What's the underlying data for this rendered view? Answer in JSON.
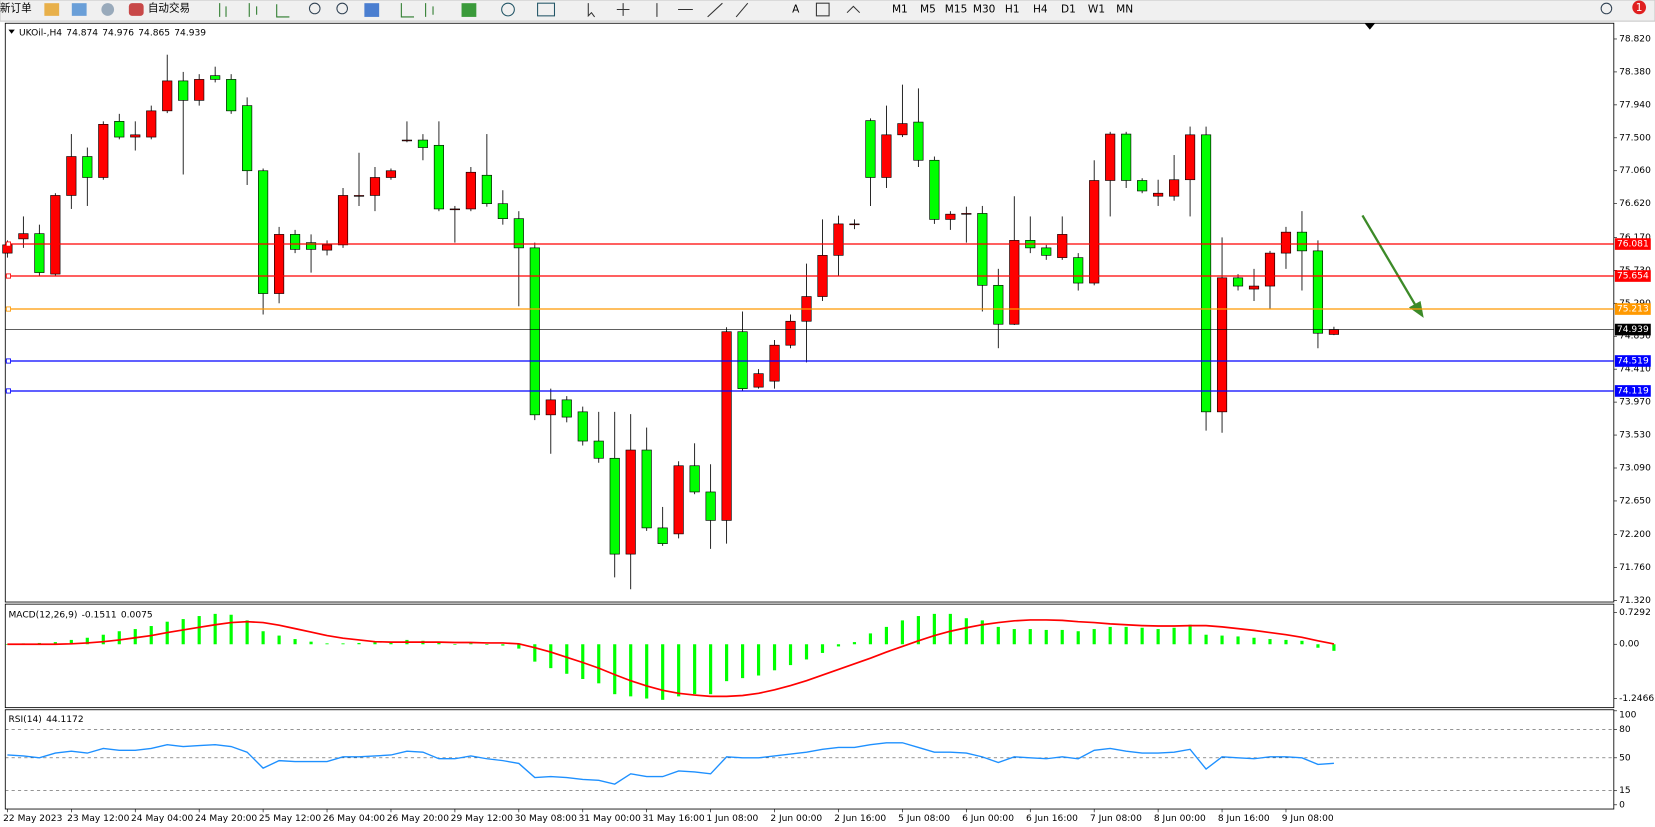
{
  "toolbar": {
    "new_order": "新订单",
    "autotrading": "自动交易",
    "timeframes": [
      "M1",
      "M5",
      "M15",
      "M30",
      "H1",
      "H4",
      "D1",
      "W1",
      "MN"
    ],
    "notification_count": 1
  },
  "chart_data": [
    {
      "type": "candlestick",
      "title": "UKOil-,H4",
      "categories": [
        "22 May 2023",
        null,
        null,
        null,
        "23 May 12:00",
        null,
        null,
        null,
        "24 May 04:00",
        null,
        null,
        null,
        "24 May 20:00",
        null,
        null,
        null,
        "25 May 12:00",
        null,
        null,
        null,
        "26 May 04:00",
        null,
        null,
        null,
        "26 May 20:00",
        null,
        null,
        null,
        "29 May 12:00",
        null,
        null,
        null,
        "30 May 08:00",
        null,
        null,
        null,
        "31 May 00:00",
        null,
        null,
        null,
        "31 May 16:00",
        null,
        null,
        null,
        "1 Jun 08:00",
        null,
        null,
        null,
        "2 Jun 00:00",
        null,
        null,
        null,
        "2 Jun 16:00",
        null,
        null,
        null,
        "5 Jun 08:00",
        null,
        null,
        null,
        "6 Jun 00:00",
        null,
        null,
        null,
        "6 Jun 16:00",
        null,
        null,
        null,
        "7 Jun 08:00",
        null,
        null,
        null,
        "8 Jun 00:00",
        null,
        null,
        null,
        "8 Jun 16:00",
        null,
        null,
        null,
        "9 Jun 08:00",
        null,
        null,
        null
      ],
      "open": [
        75.96,
        76.15,
        76.22,
        75.68,
        76.73,
        77.25,
        76.97,
        77.72,
        77.51,
        77.51,
        77.86,
        78.26,
        78.0,
        78.33,
        78.28,
        77.93,
        77.06,
        75.42,
        76.21,
        76.1,
        76.0,
        76.07,
        76.73,
        76.73,
        76.97,
        77.47,
        77.47,
        77.4,
        76.55,
        76.55,
        77.0,
        76.62,
        76.42,
        76.03,
        73.8,
        74.0,
        73.84,
        73.45,
        73.22,
        71.94,
        73.33,
        72.29,
        72.21,
        73.12,
        72.77,
        72.39,
        74.91,
        74.17,
        74.25,
        74.73,
        75.05,
        75.38,
        75.93,
        76.35,
        77.73,
        76.97,
        77.54,
        77.71,
        77.2,
        76.41,
        76.49,
        76.49,
        75.53,
        75.01,
        76.13,
        76.03,
        75.9,
        75.9,
        75.56,
        76.93,
        77.55,
        76.93,
        76.72,
        76.72,
        76.94,
        77.54,
        73.84,
        75.63,
        75.48,
        75.52,
        75.96,
        76.24,
        75.99,
        74.874
      ],
      "high": [
        76.13,
        76.45,
        76.34,
        76.76,
        77.55,
        77.37,
        77.72,
        77.82,
        77.72,
        77.93,
        78.61,
        78.38,
        78.35,
        78.45,
        78.35,
        78.04,
        77.09,
        76.31,
        76.27,
        76.21,
        76.13,
        76.83,
        77.3,
        77.11,
        77.09,
        77.72,
        77.55,
        77.72,
        76.59,
        77.11,
        77.55,
        76.8,
        76.52,
        76.1,
        74.15,
        74.05,
        73.91,
        73.84,
        73.84,
        73.81,
        73.63,
        72.57,
        73.18,
        73.42,
        73.14,
        74.97,
        75.18,
        74.41,
        74.8,
        75.14,
        75.82,
        76.41,
        76.46,
        76.41,
        77.76,
        77.93,
        78.21,
        78.16,
        77.25,
        76.52,
        76.58,
        76.59,
        75.75,
        76.72,
        76.45,
        76.07,
        76.45,
        75.96,
        77.2,
        77.58,
        77.58,
        76.96,
        76.94,
        77.27,
        77.65,
        77.65,
        76.17,
        75.68,
        75.75,
        75.99,
        76.31,
        76.52,
        76.13,
        74.976
      ],
      "low": [
        75.9,
        76.03,
        75.65,
        75.65,
        76.55,
        76.59,
        76.94,
        77.48,
        77.33,
        77.48,
        77.83,
        77.01,
        77.93,
        78.24,
        77.82,
        76.87,
        75.14,
        75.29,
        75.96,
        75.7,
        75.93,
        76.03,
        76.59,
        76.52,
        76.94,
        77.44,
        77.2,
        76.52,
        76.1,
        76.52,
        76.58,
        76.34,
        75.25,
        73.73,
        73.28,
        73.7,
        73.39,
        73.16,
        71.63,
        71.47,
        72.25,
        72.05,
        72.15,
        72.74,
        72.01,
        72.08,
        74.12,
        74.15,
        74.15,
        74.69,
        74.5,
        75.32,
        75.65,
        76.28,
        76.59,
        76.83,
        77.51,
        77.11,
        76.35,
        76.27,
        76.1,
        75.18,
        74.69,
        75.0,
        75.96,
        75.87,
        75.87,
        75.46,
        75.53,
        76.45,
        76.83,
        76.76,
        76.59,
        76.66,
        76.45,
        73.59,
        73.56,
        75.46,
        75.32,
        75.22,
        75.75,
        75.46,
        74.69,
        74.865
      ],
      "close": [
        76.07,
        76.22,
        75.7,
        76.73,
        77.25,
        76.97,
        77.68,
        77.51,
        77.54,
        77.86,
        78.26,
        78.0,
        78.28,
        78.28,
        77.86,
        77.06,
        75.42,
        76.21,
        76.01,
        76.01,
        76.07,
        76.73,
        76.73,
        76.97,
        77.06,
        77.47,
        77.37,
        76.55,
        76.55,
        77.04,
        76.62,
        76.42,
        76.03,
        73.8,
        74.0,
        73.77,
        73.45,
        73.22,
        71.94,
        73.33,
        72.29,
        72.08,
        73.12,
        72.77,
        72.39,
        74.91,
        74.15,
        74.35,
        74.73,
        75.05,
        75.38,
        75.93,
        76.35,
        76.35,
        76.97,
        77.54,
        77.69,
        77.2,
        76.41,
        76.48,
        76.49,
        75.53,
        75.01,
        76.13,
        76.03,
        75.93,
        76.21,
        75.56,
        76.93,
        77.55,
        76.93,
        76.79,
        76.76,
        76.94,
        77.54,
        73.84,
        75.63,
        75.52,
        75.52,
        75.96,
        76.24,
        75.99,
        74.89,
        74.939
      ],
      "up_color": "#ff0000",
      "down_color": "#00ff00",
      "ylim": [
        71.3,
        79.03
      ],
      "yticks": [
        {
          "value": 78.82,
          "label": "78.820"
        },
        {
          "value": 78.38,
          "label": "78.380"
        },
        {
          "value": 77.94,
          "label": "77.940"
        },
        {
          "value": 77.5,
          "label": "77.500"
        },
        {
          "value": 77.06,
          "label": "77.060"
        },
        {
          "value": 76.62,
          "label": "76.620"
        },
        {
          "value": 76.17,
          "label": "76.170"
        },
        {
          "value": 75.73,
          "label": "75.730"
        },
        {
          "value": 75.29,
          "label": "75.290"
        },
        {
          "value": 74.85,
          "label": "74.850"
        },
        {
          "value": 74.41,
          "label": "74.410"
        },
        {
          "value": 73.97,
          "label": "73.970"
        },
        {
          "value": 73.53,
          "label": "73.530"
        },
        {
          "value": 73.09,
          "label": "73.090"
        },
        {
          "value": 72.65,
          "label": "72.650"
        },
        {
          "value": 72.2,
          "label": "72.200"
        },
        {
          "value": 71.76,
          "label": "71.760"
        },
        {
          "value": 71.32,
          "label": "71.320"
        }
      ],
      "hlines": [
        {
          "value": 76.081,
          "color": "#ff0000"
        },
        {
          "value": 75.654,
          "color": "#ff0000"
        },
        {
          "value": 75.213,
          "color": "#ff9900"
        },
        {
          "value": 74.519,
          "color": "#0000ff"
        },
        {
          "value": 74.119,
          "color": "#0000ff"
        }
      ],
      "grid": false
    },
    {
      "type": "macd",
      "title": "MACD(12,26,9)",
      "series": [
        {
          "color": "#00ff00",
          "style": "histogram",
          "values": [
            0,
            0.02,
            0.03,
            0.05,
            0.1,
            0.15,
            0.22,
            0.3,
            0.35,
            0.42,
            0.52,
            0.58,
            0.65,
            0.7,
            0.68,
            0.55,
            0.3,
            0.2,
            0.12,
            0.06,
            0.02,
            0.02,
            0.03,
            0.05,
            0.06,
            0.1,
            0.08,
            0.04,
            0,
            0.02,
            0,
            -0.03,
            -0.1,
            -0.4,
            -0.55,
            -0.68,
            -0.8,
            -0.9,
            -1.15,
            -1.2,
            -1.25,
            -1.28,
            -1.2,
            -1.15,
            -1.15,
            -0.85,
            -0.78,
            -0.72,
            -0.6,
            -0.48,
            -0.35,
            -0.2,
            -0.05,
            0.05,
            0.25,
            0.4,
            0.55,
            0.65,
            0.7,
            0.7,
            0.6,
            0.55,
            0.4,
            0.35,
            0.35,
            0.33,
            0.33,
            0.3,
            0.35,
            0.4,
            0.4,
            0.38,
            0.35,
            0.38,
            0.45,
            0.22,
            0.2,
            0.18,
            0.15,
            0.12,
            0.1,
            0.08,
            -0.08,
            -0.1511
          ]
        },
        {
          "color": "#ff0000",
          "style": "line",
          "values": [
            0,
            0,
            0,
            0,
            0.01,
            0.03,
            0.06,
            0.1,
            0.15,
            0.2,
            0.27,
            0.33,
            0.39,
            0.45,
            0.5,
            0.52,
            0.5,
            0.44,
            0.36,
            0.28,
            0.2,
            0.14,
            0.1,
            0.06,
            0.05,
            0.05,
            0.05,
            0.05,
            0.04,
            0.04,
            0.03,
            0.03,
            0.01,
            -0.08,
            -0.18,
            -0.3,
            -0.42,
            -0.55,
            -0.7,
            -0.84,
            -0.96,
            -1.06,
            -1.13,
            -1.17,
            -1.2,
            -1.2,
            -1.18,
            -1.13,
            -1.05,
            -0.95,
            -0.84,
            -0.71,
            -0.58,
            -0.45,
            -0.32,
            -0.18,
            -0.05,
            0.08,
            0.2,
            0.3,
            0.38,
            0.45,
            0.5,
            0.54,
            0.56,
            0.56,
            0.55,
            0.52,
            0.5,
            0.47,
            0.45,
            0.43,
            0.42,
            0.42,
            0.43,
            0.43,
            0.4,
            0.36,
            0.32,
            0.27,
            0.22,
            0.16,
            0.08,
            0.0075
          ]
        }
      ],
      "ylim": [
        -1.46,
        0.9
      ],
      "yticks": [
        0.7292,
        {
          "value": 0,
          "label": "0.00"
        },
        -1.2466
      ],
      "grid": false
    },
    {
      "type": "line",
      "title": "RSI(14)",
      "series": [
        {
          "color": "#1e90ff",
          "values": [
            53,
            52,
            50,
            55,
            57,
            55,
            60,
            58,
            58,
            60,
            64,
            62,
            63,
            64,
            62,
            56,
            39,
            47,
            46,
            46,
            46,
            51,
            51,
            52,
            53,
            57,
            56,
            49,
            49,
            52,
            49,
            47,
            44,
            29,
            30,
            29,
            27,
            26,
            22,
            33,
            30,
            30,
            36,
            35,
            33,
            51,
            50,
            50,
            52,
            54,
            56,
            59,
            61,
            61,
            64,
            66,
            66,
            61,
            56,
            56,
            55,
            51,
            45,
            51,
            50,
            49,
            51,
            49,
            58,
            60,
            57,
            55,
            55,
            56,
            59,
            38,
            51,
            50,
            49,
            51,
            51,
            50,
            43,
            44.1172
          ]
        }
      ],
      "ylim": [
        0,
        100
      ],
      "yticks": [
        100,
        80,
        50,
        15,
        0
      ],
      "grid": true
    }
  ]
}
